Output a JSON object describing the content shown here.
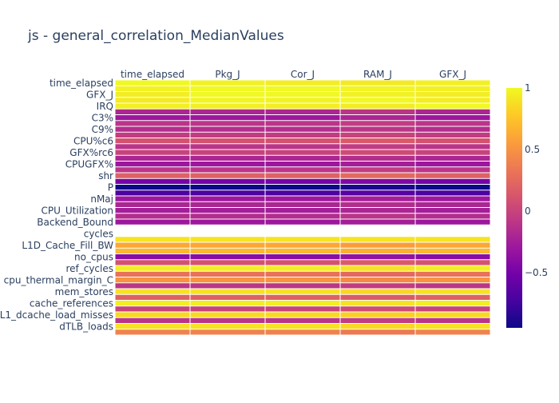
{
  "chart_data": {
    "type": "heatmap",
    "title": "js - general_correlation_MedianValues",
    "columns": [
      "time_elapsed",
      "Pkg_J",
      "Cor_J",
      "RAM_J",
      "GFX_J"
    ],
    "row_tick_labels": [
      "time_elapsed",
      "GFX_J",
      "IRQ",
      "C3%",
      "C9%",
      "CPU%c6",
      "GFX%rc6",
      "CPUGFX%",
      "shr",
      "P",
      "nMaj",
      "CPU_Utilization",
      "Backend_Bound",
      "cycles",
      "L1D_Cache_Fill_BW",
      "no_cpus",
      "ref_cycles",
      "cpu_thermal_margin_C",
      "mem_stores",
      "cache_references",
      "L1_dcache_load_misses",
      "dTLB_loads"
    ],
    "colorscale": [
      "#0d0887",
      "#46039f",
      "#7201a8",
      "#9c179e",
      "#bd3786",
      "#d8576b",
      "#ed7953",
      "#fb9f3a",
      "#fdca26",
      "#f0f921"
    ],
    "zlim": [
      -0.95,
      1
    ],
    "colorbar_ticks": [
      1,
      0.5,
      0,
      -0.5
    ],
    "colorbar_tick_labels": [
      "1",
      "0.5",
      "0",
      "−0.5"
    ],
    "n_rows": 44,
    "values": [
      [
        1.0,
        0.97,
        0.95,
        0.93,
        0.96
      ],
      [
        0.97,
        1.0,
        1.0,
        0.98,
        0.96
      ],
      [
        0.95,
        1.0,
        1.0,
        0.97,
        0.95
      ],
      [
        0.93,
        0.98,
        0.97,
        1.0,
        0.94
      ],
      [
        0.96,
        0.96,
        0.95,
        0.94,
        1.0
      ],
      [
        -0.2,
        -0.2,
        -0.2,
        -0.1,
        -0.2
      ],
      [
        -0.3,
        -0.3,
        -0.3,
        -0.2,
        -0.3
      ],
      [
        -0.1,
        -0.1,
        -0.1,
        -0.05,
        -0.1
      ],
      [
        -0.15,
        -0.15,
        -0.15,
        -0.1,
        -0.15
      ],
      [
        -0.05,
        -0.05,
        -0.05,
        0.0,
        -0.05
      ],
      [
        0.1,
        0.1,
        0.1,
        0.15,
        0.1
      ],
      [
        -0.1,
        -0.1,
        -0.1,
        -0.05,
        -0.1
      ],
      [
        0.0,
        0.0,
        0.0,
        0.05,
        0.0
      ],
      [
        -0.2,
        -0.2,
        -0.2,
        -0.15,
        -0.2
      ],
      [
        -0.3,
        -0.3,
        -0.3,
        -0.25,
        -0.3
      ],
      [
        -0.1,
        -0.1,
        -0.1,
        -0.05,
        -0.1
      ],
      [
        0.2,
        0.2,
        0.2,
        0.25,
        0.2
      ],
      [
        -0.5,
        -0.5,
        -0.5,
        -0.45,
        -0.5
      ],
      [
        -0.95,
        -0.95,
        -0.95,
        -0.9,
        -0.95
      ],
      [
        -0.7,
        -0.7,
        -0.7,
        -0.65,
        -0.7
      ],
      [
        -0.3,
        -0.3,
        -0.3,
        -0.25,
        -0.3
      ],
      [
        -0.2,
        -0.2,
        -0.2,
        -0.15,
        -0.2
      ],
      [
        -0.25,
        -0.25,
        -0.25,
        -0.2,
        -0.25
      ],
      [
        -0.15,
        -0.15,
        -0.15,
        -0.1,
        -0.15
      ],
      [
        -0.3,
        -0.3,
        -0.3,
        -0.25,
        -0.3
      ],
      [
        null,
        null,
        null,
        null,
        null
      ],
      [
        null,
        null,
        null,
        null,
        null
      ],
      [
        0.9,
        0.9,
        0.9,
        0.9,
        0.9
      ],
      [
        0.6,
        0.6,
        0.6,
        0.55,
        0.6
      ],
      [
        0.7,
        0.7,
        0.7,
        0.65,
        0.7
      ],
      [
        -0.4,
        -0.4,
        -0.4,
        -0.35,
        -0.4
      ],
      [
        0.1,
        0.1,
        0.1,
        0.15,
        0.1
      ],
      [
        0.95,
        0.95,
        0.95,
        0.9,
        0.95
      ],
      [
        0.3,
        0.3,
        0.3,
        0.25,
        0.3
      ],
      [
        0.5,
        0.5,
        0.5,
        0.45,
        0.5
      ],
      [
        -0.1,
        -0.1,
        -0.1,
        -0.05,
        -0.1
      ],
      [
        0.9,
        0.9,
        0.9,
        0.85,
        0.9
      ],
      [
        0.2,
        0.2,
        0.2,
        0.15,
        0.2
      ],
      [
        0.95,
        0.95,
        0.95,
        0.9,
        0.95
      ],
      [
        0.0,
        0.0,
        0.0,
        0.05,
        0.0
      ],
      [
        0.85,
        0.85,
        0.85,
        0.8,
        0.85
      ],
      [
        -0.1,
        -0.1,
        -0.1,
        -0.05,
        -0.1
      ],
      [
        0.9,
        0.9,
        0.9,
        0.85,
        0.9
      ],
      [
        0.4,
        0.4,
        0.4,
        0.35,
        0.4
      ]
    ]
  }
}
